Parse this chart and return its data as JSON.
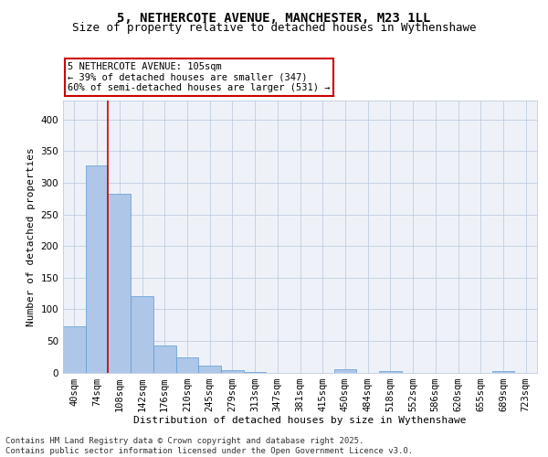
{
  "title_line1": "5, NETHERCOTE AVENUE, MANCHESTER, M23 1LL",
  "title_line2": "Size of property relative to detached houses in Wythenshawe",
  "xlabel": "Distribution of detached houses by size in Wythenshawe",
  "ylabel": "Number of detached properties",
  "bin_labels": [
    "40sqm",
    "74sqm",
    "108sqm",
    "142sqm",
    "176sqm",
    "210sqm",
    "245sqm",
    "279sqm",
    "313sqm",
    "347sqm",
    "381sqm",
    "415sqm",
    "450sqm",
    "484sqm",
    "518sqm",
    "552sqm",
    "586sqm",
    "620sqm",
    "655sqm",
    "689sqm",
    "723sqm"
  ],
  "bar_heights": [
    73,
    327,
    283,
    120,
    43,
    24,
    11,
    4,
    1,
    0,
    0,
    0,
    5,
    0,
    2,
    0,
    0,
    0,
    0,
    2,
    0
  ],
  "bar_color": "#aec6e8",
  "bar_edge_color": "#5a9bd4",
  "vline_color": "#cc0000",
  "ylim": [
    0,
    430
  ],
  "yticks": [
    0,
    50,
    100,
    150,
    200,
    250,
    300,
    350,
    400
  ],
  "annotation_text": "5 NETHERCOTE AVENUE: 105sqm\n← 39% of detached houses are smaller (347)\n60% of semi-detached houses are larger (531) →",
  "bg_color": "#eef2f8",
  "grid_color": "#c0cce0",
  "footer_text": "Contains HM Land Registry data © Crown copyright and database right 2025.\nContains public sector information licensed under the Open Government Licence v3.0.",
  "title_fontsize": 10,
  "subtitle_fontsize": 9,
  "label_fontsize": 8,
  "tick_fontsize": 7.5,
  "annotation_fontsize": 7.5,
  "footer_fontsize": 6.5
}
